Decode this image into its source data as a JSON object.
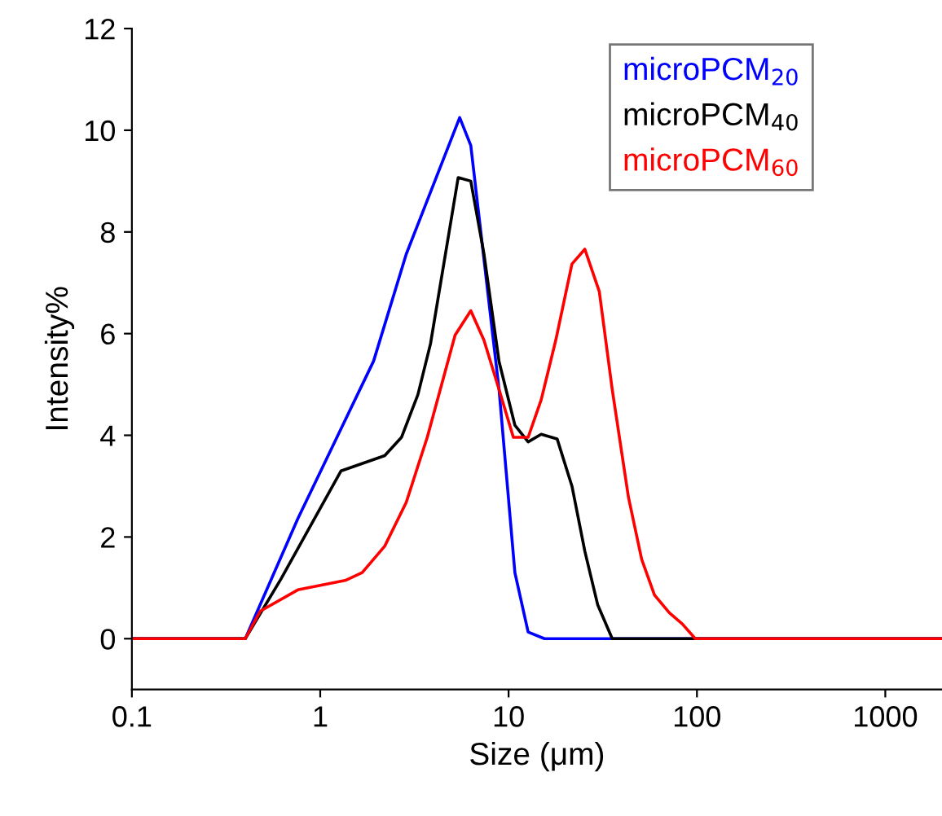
{
  "chart_data": {
    "type": "line",
    "xlabel": "Size (μm)",
    "ylabel": "Intensity%",
    "log": "x",
    "xlim": [
      0.1,
      2000
    ],
    "ylim": [
      -1,
      12
    ],
    "xticks": [
      0.1,
      1,
      10,
      100,
      1000
    ],
    "yticks": [
      0,
      2,
      4,
      6,
      8,
      10,
      12
    ],
    "grid": false,
    "legend": "top right",
    "marker": "none",
    "line_style": "solid",
    "series": [
      {
        "name": "microPCM$_{20}$",
        "color": "#0000ff",
        "x": [
          0.1,
          0.4,
          0.76,
          1.92,
          2.86,
          5.5,
          6.3,
          8.9,
          10.8,
          12.7,
          15.5,
          2000
        ],
        "values": [
          0,
          0,
          2.36,
          5.46,
          7.56,
          10.25,
          9.7,
          4.9,
          1.3,
          0.13,
          0,
          0
        ]
      },
      {
        "name": "microPCM$_{40}$",
        "color": "#000000",
        "x": [
          0.1,
          0.4,
          0.62,
          1.29,
          2.2,
          2.7,
          3.3,
          3.85,
          5.4,
          6.3,
          7.4,
          8.9,
          10.8,
          12.7,
          14.9,
          18.1,
          21.7,
          25.4,
          29.7,
          35.5,
          2000
        ],
        "values": [
          0,
          0,
          1.18,
          3.3,
          3.6,
          3.96,
          4.8,
          5.8,
          9.07,
          9.0,
          7.57,
          5.45,
          4.2,
          3.87,
          4.02,
          3.93,
          3.0,
          1.72,
          0.67,
          0,
          0
        ]
      },
      {
        "name": "microPCM$_{60}$",
        "color": "#ff0000",
        "x": [
          0.1,
          0.4,
          0.48,
          0.76,
          1.37,
          1.67,
          2.2,
          2.86,
          3.7,
          5.2,
          6.3,
          7.4,
          8.9,
          10.6,
          12.7,
          14.9,
          17.8,
          21.7,
          25.4,
          30.3,
          35.5,
          43.3,
          50.9,
          59.5,
          71.3,
          83.6,
          98,
          2000
        ],
        "values": [
          0,
          0,
          0.54,
          0.96,
          1.15,
          1.3,
          1.82,
          2.68,
          3.96,
          5.97,
          6.45,
          5.87,
          4.9,
          3.96,
          3.96,
          4.7,
          5.87,
          7.37,
          7.66,
          6.83,
          4.9,
          2.78,
          1.56,
          0.86,
          0.51,
          0.29,
          0,
          0
        ]
      }
    ]
  }
}
